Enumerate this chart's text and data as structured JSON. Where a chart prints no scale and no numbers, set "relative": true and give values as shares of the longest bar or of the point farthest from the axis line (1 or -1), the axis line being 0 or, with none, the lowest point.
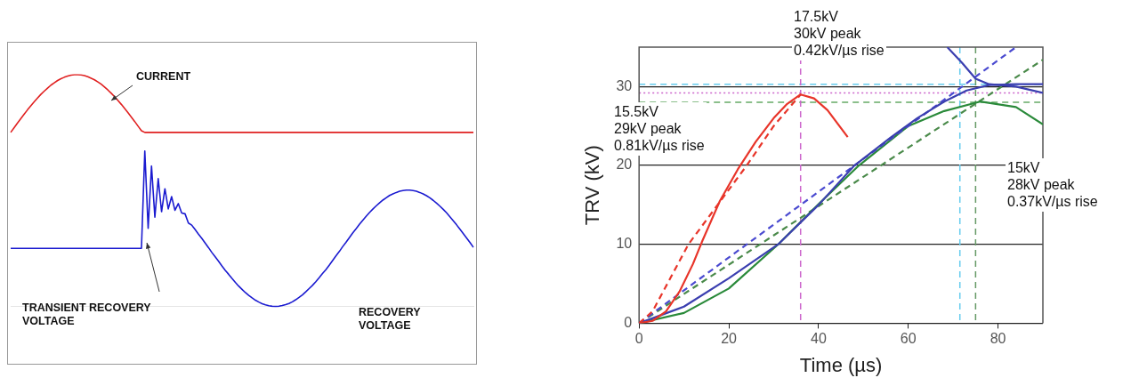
{
  "chart_data": [
    {
      "type": "line",
      "relative": true,
      "categories": [
        null,
        null,
        null,
        null,
        null,
        null,
        null,
        null,
        null,
        null,
        null,
        null,
        null,
        null,
        null,
        null,
        null,
        null,
        null,
        null,
        null,
        null,
        null,
        null,
        null,
        null,
        null,
        null,
        null,
        null,
        null,
        null,
        null,
        null,
        null,
        null,
        null,
        null,
        null,
        null,
        null,
        null,
        null,
        null,
        null,
        null,
        null,
        null,
        null,
        null,
        null,
        null,
        null,
        null,
        null,
        null,
        null,
        null,
        null,
        null,
        null,
        null,
        null,
        null,
        null,
        null,
        null,
        null,
        null,
        null,
        null,
        null,
        null,
        null,
        null,
        null,
        null,
        null,
        null,
        null,
        null,
        null,
        null,
        null,
        null,
        null,
        null,
        null,
        null,
        null,
        null,
        null,
        null,
        null,
        null,
        null,
        null,
        null,
        null,
        null,
        null,
        null,
        null,
        null,
        null,
        null,
        null,
        null,
        null,
        null,
        null,
        null,
        null,
        null,
        null,
        null,
        null,
        null,
        null,
        null,
        null,
        null,
        null,
        null,
        null,
        null,
        null,
        null,
        null,
        null,
        null,
        null,
        null,
        null,
        null,
        null,
        null,
        null,
        null
      ],
      "series": [
        {
          "color": "#e02020",
          "values": [
            0.751,
            0.771,
            0.791,
            0.81,
            0.829,
            0.848,
            0.866,
            0.883,
            0.899,
            0.915,
            0.929,
            0.942,
            0.955,
            0.965,
            0.975,
            0.983,
            0.989,
            0.994,
            0.998,
            1.0,
            1.0,
            0.999,
            0.996,
            0.991,
            0.985,
            0.978,
            0.969,
            0.959,
            0.947,
            0.934,
            0.92,
            0.905,
            0.889,
            0.872,
            0.854,
            0.836,
            0.817,
            0.798,
            0.778,
            0.758,
            0.751,
            0.751,
            0.751,
            0.751,
            0.751,
            0.751,
            0.751,
            0.751,
            0.751,
            0.751,
            0.751,
            0.751,
            0.751,
            0.751,
            0.751,
            0.751,
            0.751,
            0.751,
            0.751,
            0.751,
            0.751,
            0.751,
            0.751,
            0.751,
            0.751,
            0.751,
            0.751,
            0.751,
            0.751,
            0.751,
            0.751,
            0.751,
            0.751,
            0.751,
            0.751,
            0.751,
            0.751,
            0.751,
            0.751,
            0.751,
            0.751,
            0.751,
            0.751,
            0.751,
            0.751,
            0.751,
            0.751,
            0.751,
            0.751,
            0.751,
            0.751,
            0.751,
            0.751,
            0.751,
            0.751,
            0.751,
            0.751,
            0.751,
            0.751,
            0.751,
            0.751,
            0.751,
            0.751,
            0.751,
            0.751,
            0.751,
            0.751,
            0.751,
            0.751,
            0.751,
            0.751,
            0.751,
            0.751,
            0.751,
            0.751,
            0.751,
            0.751,
            0.751,
            0.751,
            0.751,
            0.751,
            0.751,
            0.751,
            0.751,
            0.751,
            0.751,
            0.751,
            0.751,
            0.751,
            0.751,
            0.751,
            0.751,
            0.751,
            0.751,
            0.751,
            0.751,
            0.751,
            0.751,
            0.751
          ]
        },
        {
          "color": "#1a1ad0",
          "values": [
            0.251,
            0.251,
            0.251,
            0.251,
            0.251,
            0.251,
            0.251,
            0.251,
            0.251,
            0.251,
            0.251,
            0.251,
            0.251,
            0.251,
            0.251,
            0.251,
            0.251,
            0.251,
            0.251,
            0.251,
            0.251,
            0.251,
            0.251,
            0.251,
            0.251,
            0.251,
            0.251,
            0.251,
            0.251,
            0.251,
            0.251,
            0.251,
            0.251,
            0.251,
            0.251,
            0.251,
            0.251,
            0.251,
            0.251,
            0.251,
            0.671,
            0.337,
            0.606,
            0.385,
            0.552,
            0.409,
            0.508,
            0.421,
            0.474,
            0.415,
            0.444,
            0.403,
            0.4,
            0.36,
            0.351,
            0.332,
            0.312,
            0.294,
            0.274,
            0.254,
            0.233,
            0.214,
            0.195,
            0.175,
            0.156,
            0.139,
            0.121,
            0.104,
            0.088,
            0.074,
            0.06,
            0.048,
            0.037,
            0.027,
            0.019,
            0.012,
            0.007,
            0.003,
            0.001,
            0.0,
            0.001,
            0.004,
            0.008,
            0.013,
            0.02,
            0.029,
            0.039,
            0.05,
            0.063,
            0.077,
            0.091,
            0.107,
            0.124,
            0.142,
            0.159,
            0.178,
            0.198,
            0.218,
            0.237,
            0.258,
            0.277,
            0.297,
            0.317,
            0.335,
            0.354,
            0.372,
            0.389,
            0.405,
            0.42,
            0.434,
            0.447,
            0.459,
            0.469,
            0.479,
            0.486,
            0.492,
            0.497,
            0.5,
            0.502,
            0.502,
            0.5,
            0.497,
            0.492,
            0.486,
            0.478,
            0.469,
            0.458,
            0.446,
            0.433,
            0.419,
            0.404,
            0.387,
            0.37,
            0.352,
            0.333,
            0.314,
            0.295,
            0.276,
            0.255
          ]
        }
      ],
      "annotations": [
        "CURRENT",
        "TRANSIENT RECOVERY\nVOLTAGE",
        "RECOVERY\nVOLTAGE"
      ]
    },
    {
      "type": "line",
      "xlabel": "Time (µs)",
      "ylabel": "TRV (kV)",
      "xlim": [
        0,
        90
      ],
      "ylim": [
        0,
        35
      ],
      "xticks": [
        0,
        20,
        40,
        60,
        80
      ],
      "yticks": [
        0,
        10,
        20,
        30
      ],
      "grid": "y",
      "marker": "none",
      "series": [
        {
          "color": "#e8352a",
          "line_style": "solid",
          "x": [
            0,
            3,
            6,
            9,
            12,
            14,
            18,
            22,
            26,
            30,
            33,
            36,
            39,
            42,
            46.5
          ],
          "values": [
            0,
            0.3,
            1.5,
            4,
            7.5,
            10.3,
            15.5,
            19.5,
            23,
            26,
            27.8,
            29,
            28.5,
            27,
            23.6
          ]
        },
        {
          "color": "#e8352a",
          "line_style": "dashed",
          "x": [
            0,
            3,
            11,
            24,
            30,
            36
          ],
          "values": [
            0,
            1.5,
            10,
            20,
            25,
            29
          ]
        },
        {
          "color": "#3b3fb0",
          "line_style": "solid",
          "x": [
            0,
            10,
            20,
            31,
            40,
            48,
            56,
            62,
            68,
            73,
            78,
            84,
            90
          ],
          "values": [
            0,
            2.1,
            5.7,
            10,
            15,
            20,
            23.5,
            26,
            28.1,
            29.5,
            30.2,
            30.3,
            30.3
          ]
        },
        {
          "color": "#3b3fb0",
          "line_style": "solid",
          "x": [
            68.7,
            72,
            75,
            78,
            84,
            90
          ],
          "values": [
            35,
            33,
            31,
            30.3,
            30,
            29.2
          ]
        },
        {
          "color": "#4a4ad0",
          "line_style": "dashed",
          "x": [
            0,
            84
          ],
          "values": [
            0,
            35
          ]
        },
        {
          "color": "#2a8a3a",
          "line_style": "solid",
          "x": [
            0,
            10,
            20,
            31,
            40,
            49,
            60,
            68,
            76,
            84,
            90
          ],
          "values": [
            0,
            1.3,
            4.4,
            10,
            15.1,
            20,
            25,
            26.9,
            28.1,
            27.4,
            25.2
          ]
        },
        {
          "color": "#4a8a4a",
          "line_style": "dashed",
          "x": [
            0,
            90
          ],
          "values": [
            0,
            33.4
          ]
        }
      ],
      "ref_lines": [
        {
          "axis": "y",
          "value": 30.3,
          "color": "#66ccee",
          "line_style": "dashed"
        },
        {
          "axis": "y",
          "value": 29.2,
          "color": "#cc66cc",
          "line_style": "dotted"
        },
        {
          "axis": "y",
          "value": 28,
          "color": "#66aa66",
          "line_style": "dashed"
        },
        {
          "axis": "x",
          "value": 36,
          "color": "#cc66cc",
          "line_style": "dashed"
        },
        {
          "axis": "x",
          "value": 71.5,
          "color": "#66ccee",
          "line_style": "dashed"
        },
        {
          "axis": "x",
          "value": 75,
          "color": "#669966",
          "line_style": "dashed"
        }
      ],
      "annotations": [
        "15.5kV\n29kV peak\n0.81kV/µs rise",
        "17.5kV\n30kV peak\n0.42kV/µs rise",
        "15kV\n28kV peak\n0.37kV/µs rise"
      ]
    }
  ]
}
